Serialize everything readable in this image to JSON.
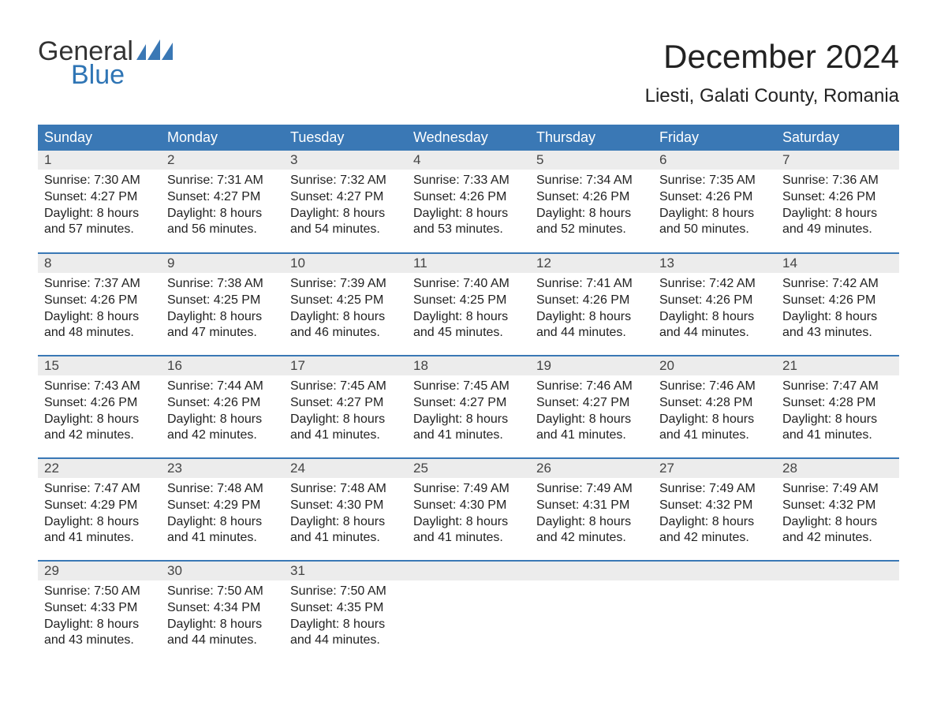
{
  "brand": {
    "word1": "General",
    "word2": "Blue",
    "text_color": "#333333",
    "accent_color": "#2f75b5",
    "icon_color": "#3a78b5"
  },
  "title": "December 2024",
  "location": "Liesti, Galati County, Romania",
  "colors": {
    "header_bg": "#3a78b5",
    "header_text": "#ffffff",
    "daynum_bg": "#ececec",
    "week_border": "#3a78b5",
    "body_text": "#222222",
    "page_bg": "#ffffff"
  },
  "typography": {
    "title_fontsize": 42,
    "location_fontsize": 24,
    "header_fontsize": 18,
    "daynum_fontsize": 17,
    "detail_fontsize": 16,
    "logo_fontsize": 34
  },
  "calendar": {
    "type": "table",
    "columns": [
      "Sunday",
      "Monday",
      "Tuesday",
      "Wednesday",
      "Thursday",
      "Friday",
      "Saturday"
    ],
    "labels": {
      "sunrise": "Sunrise:",
      "sunset": "Sunset:",
      "daylight": "Daylight:"
    },
    "weeks": [
      [
        {
          "day": "1",
          "sunrise": "7:30 AM",
          "sunset": "4:27 PM",
          "daylight": "8 hours and 57 minutes."
        },
        {
          "day": "2",
          "sunrise": "7:31 AM",
          "sunset": "4:27 PM",
          "daylight": "8 hours and 56 minutes."
        },
        {
          "day": "3",
          "sunrise": "7:32 AM",
          "sunset": "4:27 PM",
          "daylight": "8 hours and 54 minutes."
        },
        {
          "day": "4",
          "sunrise": "7:33 AM",
          "sunset": "4:26 PM",
          "daylight": "8 hours and 53 minutes."
        },
        {
          "day": "5",
          "sunrise": "7:34 AM",
          "sunset": "4:26 PM",
          "daylight": "8 hours and 52 minutes."
        },
        {
          "day": "6",
          "sunrise": "7:35 AM",
          "sunset": "4:26 PM",
          "daylight": "8 hours and 50 minutes."
        },
        {
          "day": "7",
          "sunrise": "7:36 AM",
          "sunset": "4:26 PM",
          "daylight": "8 hours and 49 minutes."
        }
      ],
      [
        {
          "day": "8",
          "sunrise": "7:37 AM",
          "sunset": "4:26 PM",
          "daylight": "8 hours and 48 minutes."
        },
        {
          "day": "9",
          "sunrise": "7:38 AM",
          "sunset": "4:25 PM",
          "daylight": "8 hours and 47 minutes."
        },
        {
          "day": "10",
          "sunrise": "7:39 AM",
          "sunset": "4:25 PM",
          "daylight": "8 hours and 46 minutes."
        },
        {
          "day": "11",
          "sunrise": "7:40 AM",
          "sunset": "4:25 PM",
          "daylight": "8 hours and 45 minutes."
        },
        {
          "day": "12",
          "sunrise": "7:41 AM",
          "sunset": "4:26 PM",
          "daylight": "8 hours and 44 minutes."
        },
        {
          "day": "13",
          "sunrise": "7:42 AM",
          "sunset": "4:26 PM",
          "daylight": "8 hours and 44 minutes."
        },
        {
          "day": "14",
          "sunrise": "7:42 AM",
          "sunset": "4:26 PM",
          "daylight": "8 hours and 43 minutes."
        }
      ],
      [
        {
          "day": "15",
          "sunrise": "7:43 AM",
          "sunset": "4:26 PM",
          "daylight": "8 hours and 42 minutes."
        },
        {
          "day": "16",
          "sunrise": "7:44 AM",
          "sunset": "4:26 PM",
          "daylight": "8 hours and 42 minutes."
        },
        {
          "day": "17",
          "sunrise": "7:45 AM",
          "sunset": "4:27 PM",
          "daylight": "8 hours and 41 minutes."
        },
        {
          "day": "18",
          "sunrise": "7:45 AM",
          "sunset": "4:27 PM",
          "daylight": "8 hours and 41 minutes."
        },
        {
          "day": "19",
          "sunrise": "7:46 AM",
          "sunset": "4:27 PM",
          "daylight": "8 hours and 41 minutes."
        },
        {
          "day": "20",
          "sunrise": "7:46 AM",
          "sunset": "4:28 PM",
          "daylight": "8 hours and 41 minutes."
        },
        {
          "day": "21",
          "sunrise": "7:47 AM",
          "sunset": "4:28 PM",
          "daylight": "8 hours and 41 minutes."
        }
      ],
      [
        {
          "day": "22",
          "sunrise": "7:47 AM",
          "sunset": "4:29 PM",
          "daylight": "8 hours and 41 minutes."
        },
        {
          "day": "23",
          "sunrise": "7:48 AM",
          "sunset": "4:29 PM",
          "daylight": "8 hours and 41 minutes."
        },
        {
          "day": "24",
          "sunrise": "7:48 AM",
          "sunset": "4:30 PM",
          "daylight": "8 hours and 41 minutes."
        },
        {
          "day": "25",
          "sunrise": "7:49 AM",
          "sunset": "4:30 PM",
          "daylight": "8 hours and 41 minutes."
        },
        {
          "day": "26",
          "sunrise": "7:49 AM",
          "sunset": "4:31 PM",
          "daylight": "8 hours and 42 minutes."
        },
        {
          "day": "27",
          "sunrise": "7:49 AM",
          "sunset": "4:32 PM",
          "daylight": "8 hours and 42 minutes."
        },
        {
          "day": "28",
          "sunrise": "7:49 AM",
          "sunset": "4:32 PM",
          "daylight": "8 hours and 42 minutes."
        }
      ],
      [
        {
          "day": "29",
          "sunrise": "7:50 AM",
          "sunset": "4:33 PM",
          "daylight": "8 hours and 43 minutes."
        },
        {
          "day": "30",
          "sunrise": "7:50 AM",
          "sunset": "4:34 PM",
          "daylight": "8 hours and 44 minutes."
        },
        {
          "day": "31",
          "sunrise": "7:50 AM",
          "sunset": "4:35 PM",
          "daylight": "8 hours and 44 minutes."
        },
        null,
        null,
        null,
        null
      ]
    ]
  }
}
